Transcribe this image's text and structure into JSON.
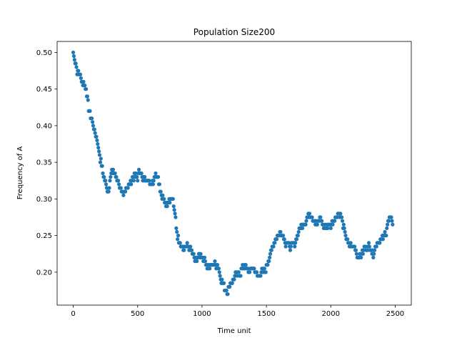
{
  "chart_data": {
    "type": "scatter",
    "title": "Population Size200",
    "xlabel": "Time unit",
    "ylabel": "Frequency of A",
    "xlim": [
      -125,
      2625
    ],
    "ylim": [
      0.155,
      0.515
    ],
    "xticks": [
      0,
      500,
      1000,
      1500,
      2000,
      2500
    ],
    "yticks": [
      0.2,
      0.25,
      0.3,
      0.35,
      0.4,
      0.45,
      0.5
    ],
    "xtick_labels": [
      "0",
      "500",
      "1000",
      "1500",
      "2000",
      "2500"
    ],
    "ytick_labels": [
      "0.20",
      "0.25",
      "0.30",
      "0.35",
      "0.40",
      "0.45",
      "0.50"
    ],
    "grid": false,
    "marker_color": "#1f77b4",
    "series": [
      {
        "points_step": 5,
        "x_start": 0,
        "anchors": [
          [
            0,
            0.5
          ],
          [
            20,
            0.485
          ],
          [
            30,
            0.475
          ],
          [
            50,
            0.47
          ],
          [
            70,
            0.46
          ],
          [
            90,
            0.455
          ],
          [
            100,
            0.45
          ],
          [
            110,
            0.435
          ],
          [
            130,
            0.415
          ],
          [
            150,
            0.405
          ],
          [
            170,
            0.39
          ],
          [
            190,
            0.375
          ],
          [
            210,
            0.355
          ],
          [
            230,
            0.335
          ],
          [
            250,
            0.325
          ],
          [
            270,
            0.31
          ],
          [
            290,
            0.33
          ],
          [
            310,
            0.34
          ],
          [
            330,
            0.33
          ],
          [
            350,
            0.325
          ],
          [
            370,
            0.31
          ],
          [
            390,
            0.305
          ],
          [
            410,
            0.315
          ],
          [
            440,
            0.32
          ],
          [
            460,
            0.33
          ],
          [
            500,
            0.33
          ],
          [
            520,
            0.34
          ],
          [
            540,
            0.325
          ],
          [
            570,
            0.33
          ],
          [
            600,
            0.32
          ],
          [
            620,
            0.325
          ],
          [
            640,
            0.335
          ],
          [
            660,
            0.33
          ],
          [
            680,
            0.31
          ],
          [
            700,
            0.3
          ],
          [
            720,
            0.29
          ],
          [
            750,
            0.3
          ],
          [
            770,
            0.305
          ],
          [
            790,
            0.28
          ],
          [
            800,
            0.26
          ],
          [
            820,
            0.24
          ],
          [
            850,
            0.23
          ],
          [
            880,
            0.235
          ],
          [
            920,
            0.23
          ],
          [
            950,
            0.215
          ],
          [
            980,
            0.225
          ],
          [
            1020,
            0.215
          ],
          [
            1050,
            0.205
          ],
          [
            1080,
            0.21
          ],
          [
            1120,
            0.21
          ],
          [
            1150,
            0.19
          ],
          [
            1180,
            0.175
          ],
          [
            1200,
            0.175
          ],
          [
            1220,
            0.185
          ],
          [
            1260,
            0.195
          ],
          [
            1300,
            0.2
          ],
          [
            1330,
            0.21
          ],
          [
            1360,
            0.2
          ],
          [
            1400,
            0.205
          ],
          [
            1430,
            0.195
          ],
          [
            1460,
            0.2
          ],
          [
            1490,
            0.2
          ],
          [
            1520,
            0.22
          ],
          [
            1560,
            0.24
          ],
          [
            1590,
            0.25
          ],
          [
            1620,
            0.255
          ],
          [
            1650,
            0.24
          ],
          [
            1690,
            0.235
          ],
          [
            1720,
            0.24
          ],
          [
            1750,
            0.255
          ],
          [
            1780,
            0.265
          ],
          [
            1810,
            0.27
          ],
          [
            1830,
            0.28
          ],
          [
            1860,
            0.275
          ],
          [
            1890,
            0.265
          ],
          [
            1920,
            0.275
          ],
          [
            1950,
            0.26
          ],
          [
            1980,
            0.265
          ],
          [
            2000,
            0.265
          ],
          [
            2020,
            0.27
          ],
          [
            2040,
            0.275
          ],
          [
            2060,
            0.28
          ],
          [
            2080,
            0.275
          ],
          [
            2100,
            0.26
          ],
          [
            2130,
            0.24
          ],
          [
            2160,
            0.235
          ],
          [
            2190,
            0.235
          ],
          [
            2210,
            0.22
          ],
          [
            2240,
            0.225
          ],
          [
            2270,
            0.235
          ],
          [
            2300,
            0.235
          ],
          [
            2330,
            0.225
          ],
          [
            2360,
            0.24
          ],
          [
            2400,
            0.245
          ],
          [
            2430,
            0.255
          ],
          [
            2450,
            0.27
          ],
          [
            2470,
            0.275
          ],
          [
            2480,
            0.265
          ]
        ]
      }
    ]
  }
}
